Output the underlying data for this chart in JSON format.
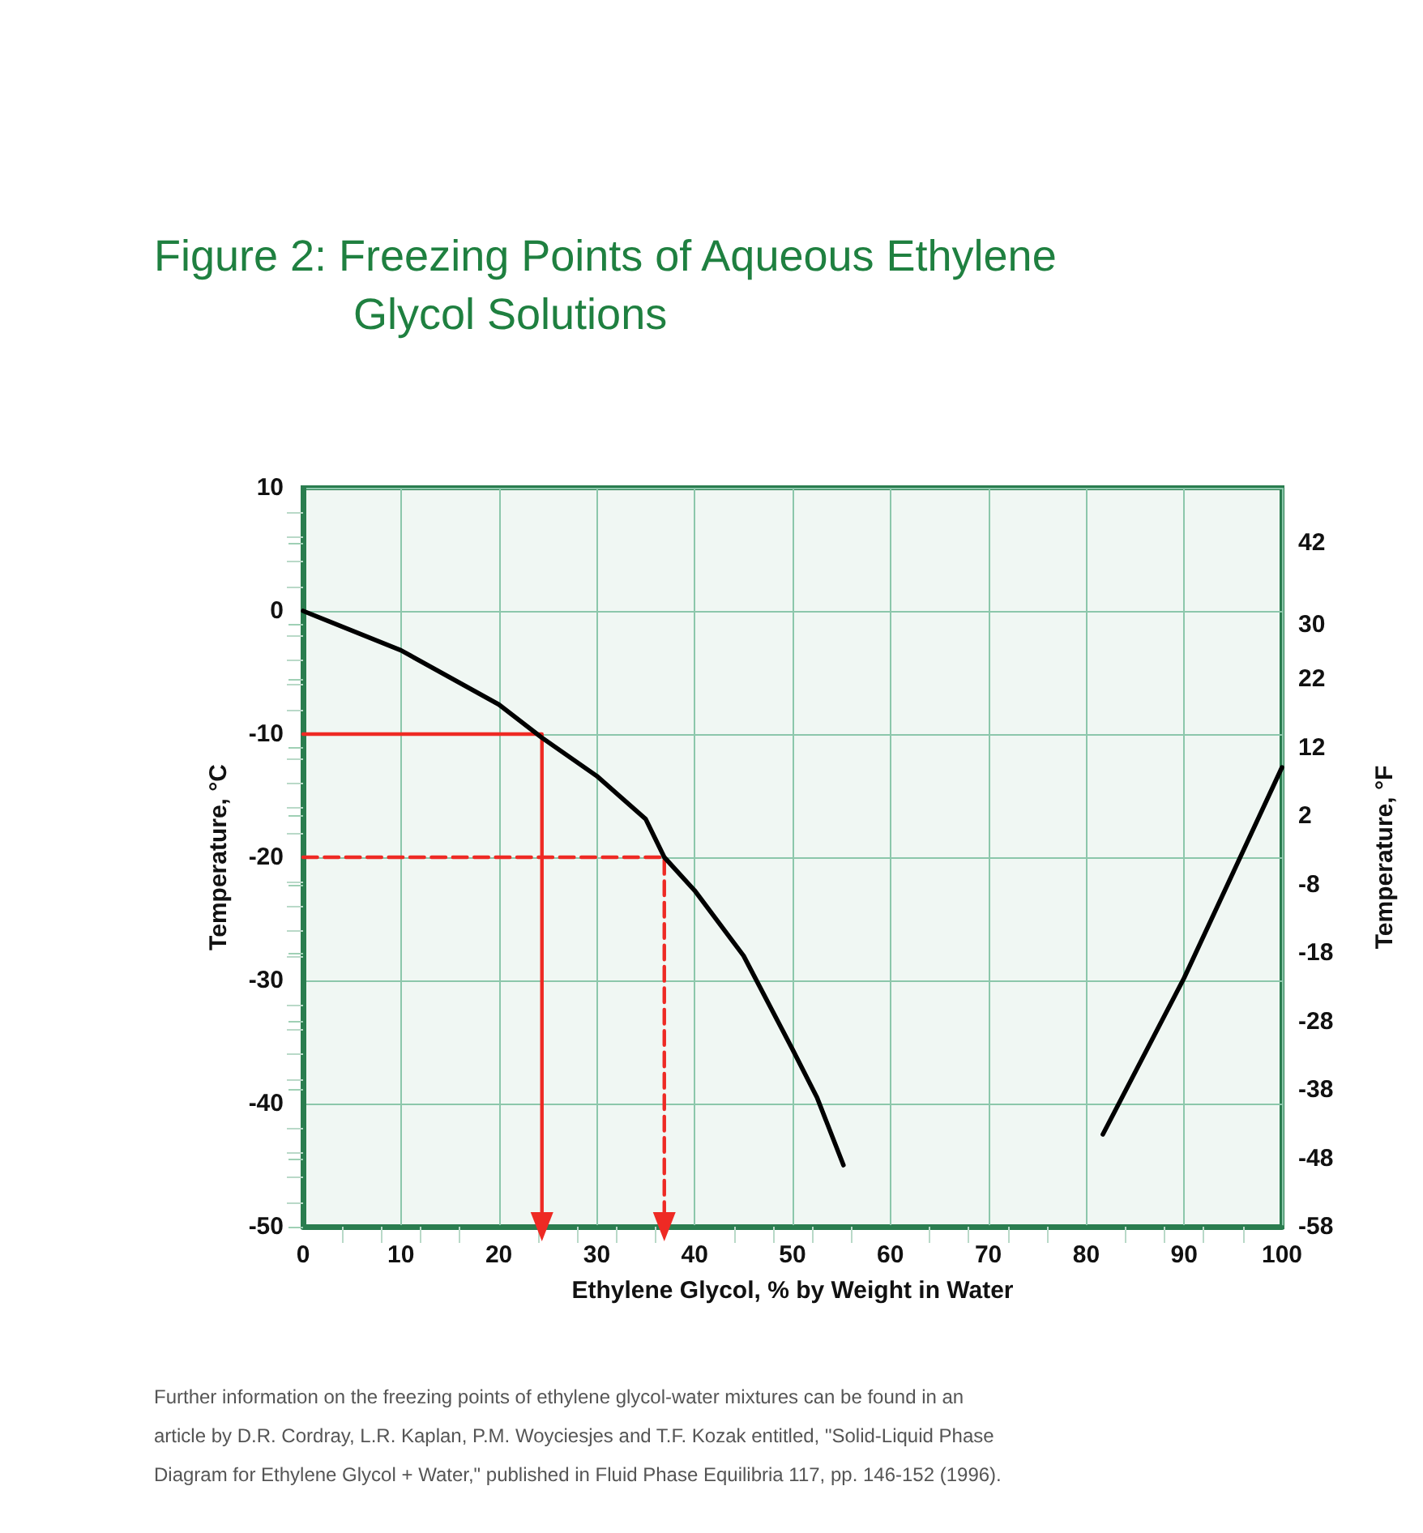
{
  "chart_data": {
    "type": "line",
    "title": "Figure 2: Freezing Points of Aqueous Ethylene Glycol Solutions",
    "xlabel": "Ethylene Glycol, % by Weight in Water",
    "ylabel": "Temperature, °C",
    "y2label": "Temperature, °F",
    "xlim": [
      0,
      100
    ],
    "xticks": [
      0,
      10,
      20,
      30,
      40,
      50,
      60,
      70,
      80,
      90,
      100
    ],
    "ylim": [
      -50,
      10
    ],
    "yticks": [
      -50,
      -40,
      -30,
      -20,
      -10,
      0,
      10
    ],
    "y2lim": [
      -58,
      50
    ],
    "y2ticks": [
      -58,
      -48,
      -38,
      -28,
      -18,
      -8,
      2,
      12,
      22,
      30,
      42
    ],
    "grid": true,
    "marker": "none",
    "annotations": [
      "Further information on the freezing points of ethylene glycol-water mixtures can be found in an article by D.R. Cordray, L.R. Kaplan, P.M. Woyciesjes and T.F. Kozak entitled, \"Solid-Liquid Phase Diagram for Ethylene Glycol + Water,\" published in Fluid Phase Equilibria 117, pp. 146-152 (1996)."
    ],
    "series": [
      {
        "color": "#000000",
        "x": [
          0,
          10,
          20,
          24.4,
          30,
          35,
          36.9,
          40,
          45,
          50,
          52.5,
          55.2
        ],
        "values": [
          0,
          -3.2,
          -7.6,
          -10.3,
          -13.4,
          -16.9,
          -20,
          -22.7,
          -28,
          -35.6,
          -39.5,
          -45
        ]
      },
      {
        "color": "#000000",
        "x": [
          81.7,
          90,
          100
        ],
        "values": [
          -42.5,
          -29.8,
          -12.7
        ]
      },
      {
        "color": "#ee2a24",
        "line_style": "solid",
        "x": [
          0,
          24.4,
          24.4
        ],
        "values": [
          -10,
          -10,
          -50
        ]
      },
      {
        "color": "#ee2a24",
        "line_style": "dashed",
        "x": [
          0,
          36.9,
          36.9
        ],
        "values": [
          -20,
          -20,
          -50
        ]
      }
    ]
  }
}
